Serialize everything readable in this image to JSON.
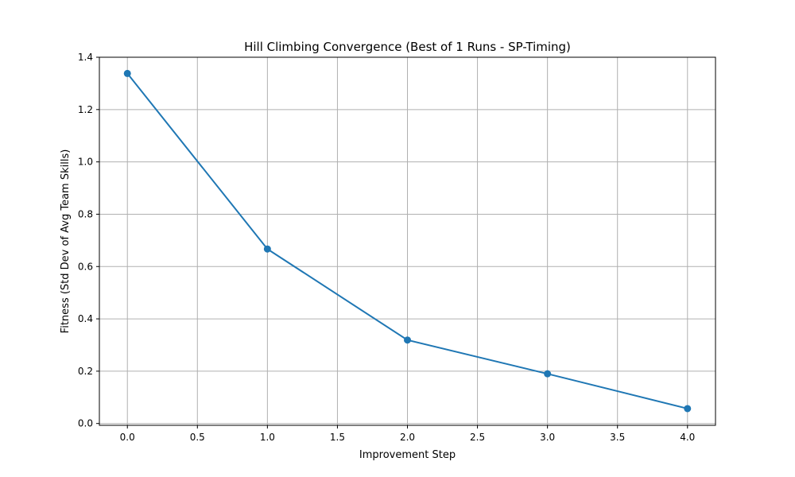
{
  "chart_data": {
    "type": "line",
    "title": "Hill Climbing Convergence (Best of 1 Runs - SP-Timing)",
    "xlabel": "Improvement Step",
    "ylabel": "Fitness (Std Dev of Avg Team Skills)",
    "x": [
      0,
      1,
      2,
      3,
      4
    ],
    "series": [
      {
        "values": [
          1.338,
          0.667,
          0.319,
          0.19,
          0.057
        ],
        "color": "#1f77b4",
        "marker": "circle"
      }
    ],
    "xlim": [
      -0.2,
      4.2
    ],
    "ylim": [
      -0.007,
      1.4
    ],
    "xticks": [
      0.0,
      0.5,
      1.0,
      1.5,
      2.0,
      2.5,
      3.0,
      3.5,
      4.0
    ],
    "xtick_labels": [
      "0.0",
      "0.5",
      "1.0",
      "1.5",
      "2.0",
      "2.5",
      "3.0",
      "3.5",
      "4.0"
    ],
    "yticks": [
      0.0,
      0.2,
      0.4,
      0.6,
      0.8,
      1.0,
      1.2,
      1.4
    ],
    "ytick_labels": [
      "0.0",
      "0.2",
      "0.4",
      "0.6",
      "0.8",
      "1.0",
      "1.2",
      "1.4"
    ],
    "grid": true,
    "legend": "none"
  }
}
